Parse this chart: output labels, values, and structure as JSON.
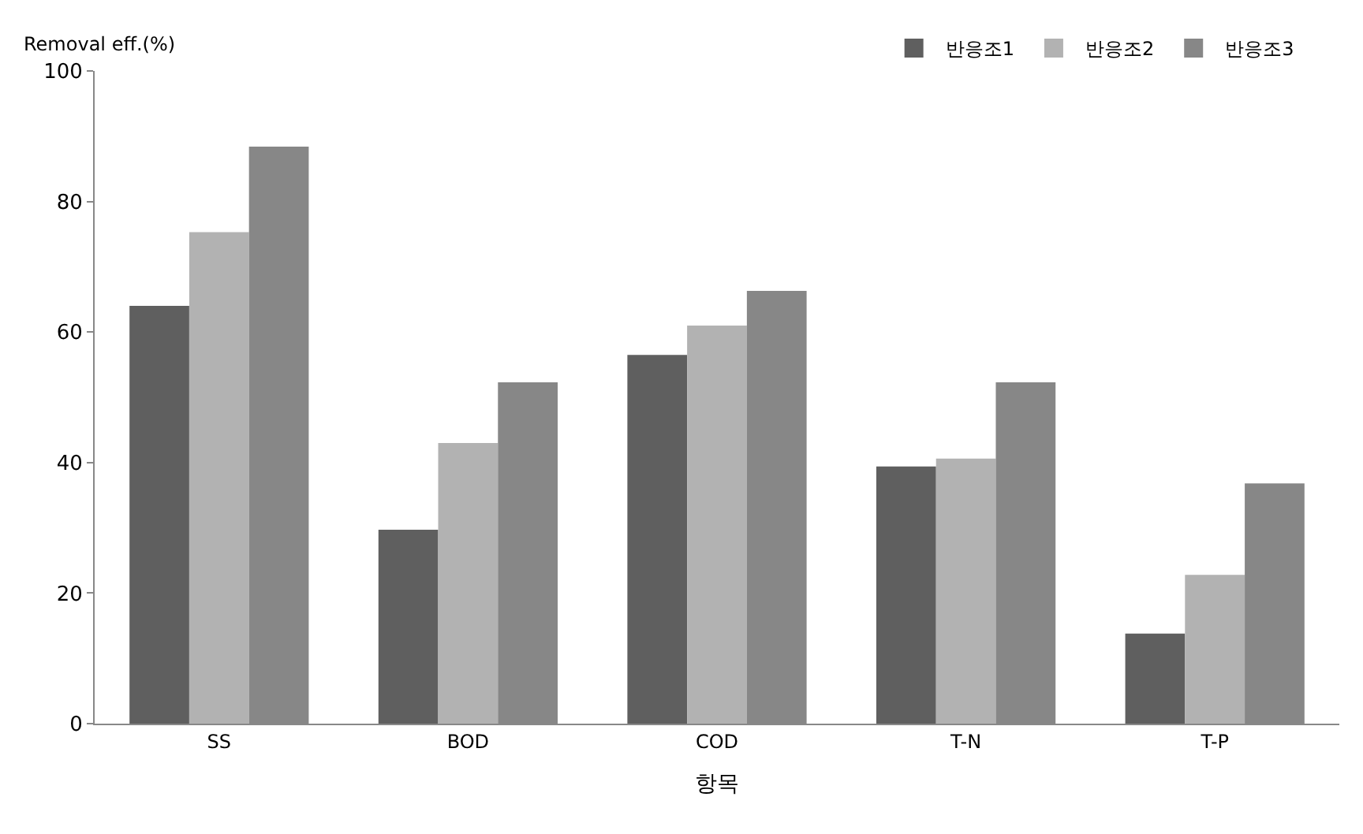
{
  "chart_data": {
    "type": "bar",
    "ylabel": "Removal eff.(%)",
    "xlabel": "항목",
    "categories": [
      "SS",
      "BOD",
      "COD",
      "T-N",
      "T-P"
    ],
    "series": [
      {
        "name": "반응조1",
        "color": "#5f5f5f",
        "values": [
          64,
          29.7,
          56.5,
          39.4,
          13.8
        ]
      },
      {
        "name": "반응조2",
        "color": "#b2b2b2",
        "values": [
          75.3,
          43,
          61,
          40.6,
          22.8
        ]
      },
      {
        "name": "반응조3",
        "color": "#878787",
        "values": [
          88.4,
          52.3,
          66.3,
          52.3,
          36.8
        ]
      }
    ],
    "ylim": [
      0,
      100
    ],
    "yticks": [
      0,
      20,
      40,
      60,
      80,
      100
    ],
    "legend": "top right"
  }
}
